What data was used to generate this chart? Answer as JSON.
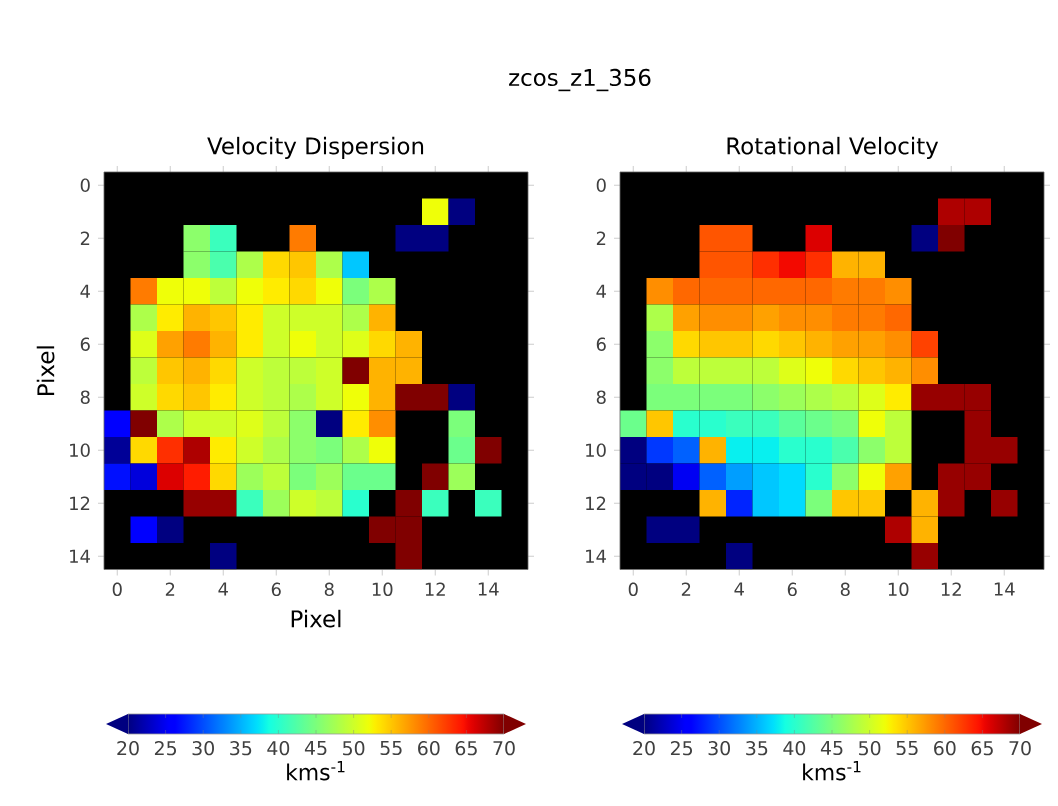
{
  "chart_data": [
    {
      "type": "heatmap",
      "title": "Velocity Dispersion",
      "annotations": [
        "zcos_z1_356"
      ],
      "xlabel": "Pixel",
      "ylabel": "Pixel",
      "clabel": "kms$^{-1}$",
      "categories": [
        "0",
        null,
        "2",
        null,
        "4",
        null,
        "6",
        null,
        "8",
        null,
        "10",
        null,
        "12",
        null,
        "14",
        null
      ],
      "y_categories": [
        "0",
        null,
        "2",
        null,
        "4",
        null,
        "6",
        null,
        "8",
        null,
        "10",
        null,
        "12",
        null,
        "14"
      ],
      "clim": [
        20,
        70
      ],
      "cticks": [
        20,
        25,
        30,
        35,
        40,
        45,
        50,
        55,
        60,
        65,
        70
      ],
      "cells": [
        [
          null,
          null,
          null,
          null,
          null,
          null,
          null,
          null,
          null,
          null,
          null,
          null,
          null,
          null,
          null,
          null
        ],
        [
          null,
          null,
          null,
          null,
          null,
          null,
          null,
          null,
          null,
          null,
          null,
          null,
          52,
          20,
          null,
          null
        ],
        [
          null,
          null,
          null,
          46,
          41,
          null,
          null,
          59,
          null,
          null,
          null,
          20,
          20,
          null,
          null,
          null
        ],
        [
          null,
          null,
          null,
          46,
          42,
          48,
          54,
          55,
          48,
          36,
          null,
          null,
          null,
          null,
          null,
          null
        ],
        [
          null,
          59,
          52,
          52,
          49,
          52,
          53,
          54,
          52,
          45,
          48,
          null,
          null,
          null,
          null,
          null
        ],
        [
          null,
          48,
          53,
          56,
          55,
          53,
          50,
          50,
          50,
          48,
          56,
          null,
          null,
          null,
          null,
          null
        ],
        [
          null,
          51,
          57,
          59,
          56,
          53,
          50,
          52,
          50,
          51,
          54,
          56,
          null,
          null,
          null,
          null
        ],
        [
          null,
          49,
          55,
          56,
          54,
          50,
          49,
          49,
          50,
          70,
          56,
          56,
          null,
          null,
          null,
          null
        ],
        [
          null,
          50,
          54,
          55,
          53,
          50,
          49,
          48,
          50,
          52,
          56,
          70,
          70,
          20,
          null,
          null
        ],
        [
          26,
          70,
          48,
          50,
          50,
          51,
          49,
          46,
          20,
          53,
          58,
          null,
          null,
          45,
          null,
          null
        ],
        [
          21,
          54,
          63,
          68,
          53,
          50,
          48,
          46,
          45,
          48,
          52,
          null,
          null,
          44,
          70,
          null
        ],
        [
          27,
          24,
          66,
          64,
          54,
          47,
          49,
          45,
          47,
          44,
          44,
          null,
          70,
          47,
          null,
          null
        ],
        [
          null,
          null,
          null,
          69,
          69,
          41,
          47,
          50,
          49,
          40,
          null,
          70,
          41,
          null,
          41,
          null
        ],
        [
          null,
          26,
          20,
          null,
          null,
          null,
          null,
          null,
          null,
          null,
          70,
          70,
          null,
          null,
          null,
          null
        ],
        [
          null,
          null,
          null,
          null,
          20,
          null,
          null,
          null,
          null,
          null,
          null,
          70,
          null,
          null,
          null,
          null
        ]
      ]
    },
    {
      "type": "heatmap",
      "title": "Rotational Velocity",
      "clabel": "kms$^{-1}$",
      "categories": [
        "0",
        null,
        "2",
        null,
        "4",
        null,
        "6",
        null,
        "8",
        null,
        "10",
        null,
        "12",
        null,
        "14",
        null
      ],
      "y_categories": [
        "0",
        null,
        "2",
        null,
        "4",
        null,
        "6",
        null,
        "8",
        null,
        "10",
        null,
        "12",
        null,
        "14"
      ],
      "clim": [
        20,
        70
      ],
      "cticks": [
        20,
        25,
        30,
        35,
        40,
        45,
        50,
        55,
        60,
        65,
        70
      ],
      "cells": [
        [
          null,
          null,
          null,
          null,
          null,
          null,
          null,
          null,
          null,
          null,
          null,
          null,
          null,
          null,
          null,
          null
        ],
        [
          null,
          null,
          null,
          null,
          null,
          null,
          null,
          null,
          null,
          null,
          null,
          null,
          68,
          68,
          null,
          null
        ],
        [
          null,
          null,
          null,
          61,
          61,
          null,
          null,
          66,
          null,
          null,
          null,
          20,
          70,
          null,
          null,
          null
        ],
        [
          null,
          null,
          null,
          61,
          61,
          63,
          65,
          63,
          56,
          56,
          null,
          null,
          null,
          null,
          null,
          null
        ],
        [
          null,
          58,
          60,
          60,
          60,
          60,
          60,
          60,
          59,
          59,
          58,
          null,
          null,
          null,
          null,
          null
        ],
        [
          null,
          48,
          57,
          58,
          58,
          57,
          58,
          58,
          59,
          59,
          60,
          null,
          null,
          null,
          null,
          null
        ],
        [
          null,
          46,
          54,
          55,
          55,
          54,
          55,
          56,
          57,
          57,
          58,
          62,
          null,
          null,
          null,
          null
        ],
        [
          null,
          46,
          49,
          49,
          49,
          49,
          51,
          52,
          54,
          55,
          56,
          58,
          null,
          null,
          null,
          null
        ],
        [
          null,
          45,
          45,
          45,
          45,
          46,
          47,
          48,
          49,
          51,
          53,
          69,
          69,
          69,
          null,
          null
        ],
        [
          44,
          55,
          40,
          40,
          41,
          41,
          43,
          44,
          45,
          52,
          49,
          null,
          null,
          69,
          null,
          null
        ],
        [
          20,
          29,
          31,
          56,
          38,
          38,
          40,
          40,
          42,
          46,
          49,
          null,
          null,
          69,
          69,
          null
        ],
        [
          20,
          20,
          25,
          31,
          34,
          36,
          37,
          40,
          46,
          52,
          57,
          null,
          69,
          69,
          null,
          null
        ],
        [
          null,
          null,
          null,
          56,
          28,
          36,
          37,
          45,
          55,
          55,
          null,
          56,
          69,
          null,
          69,
          null
        ],
        [
          null,
          20,
          20,
          null,
          null,
          null,
          null,
          null,
          null,
          null,
          68,
          56,
          null,
          null,
          null,
          null
        ],
        [
          null,
          null,
          null,
          null,
          20,
          null,
          null,
          null,
          null,
          null,
          null,
          69,
          null,
          null,
          null,
          null
        ]
      ]
    }
  ]
}
